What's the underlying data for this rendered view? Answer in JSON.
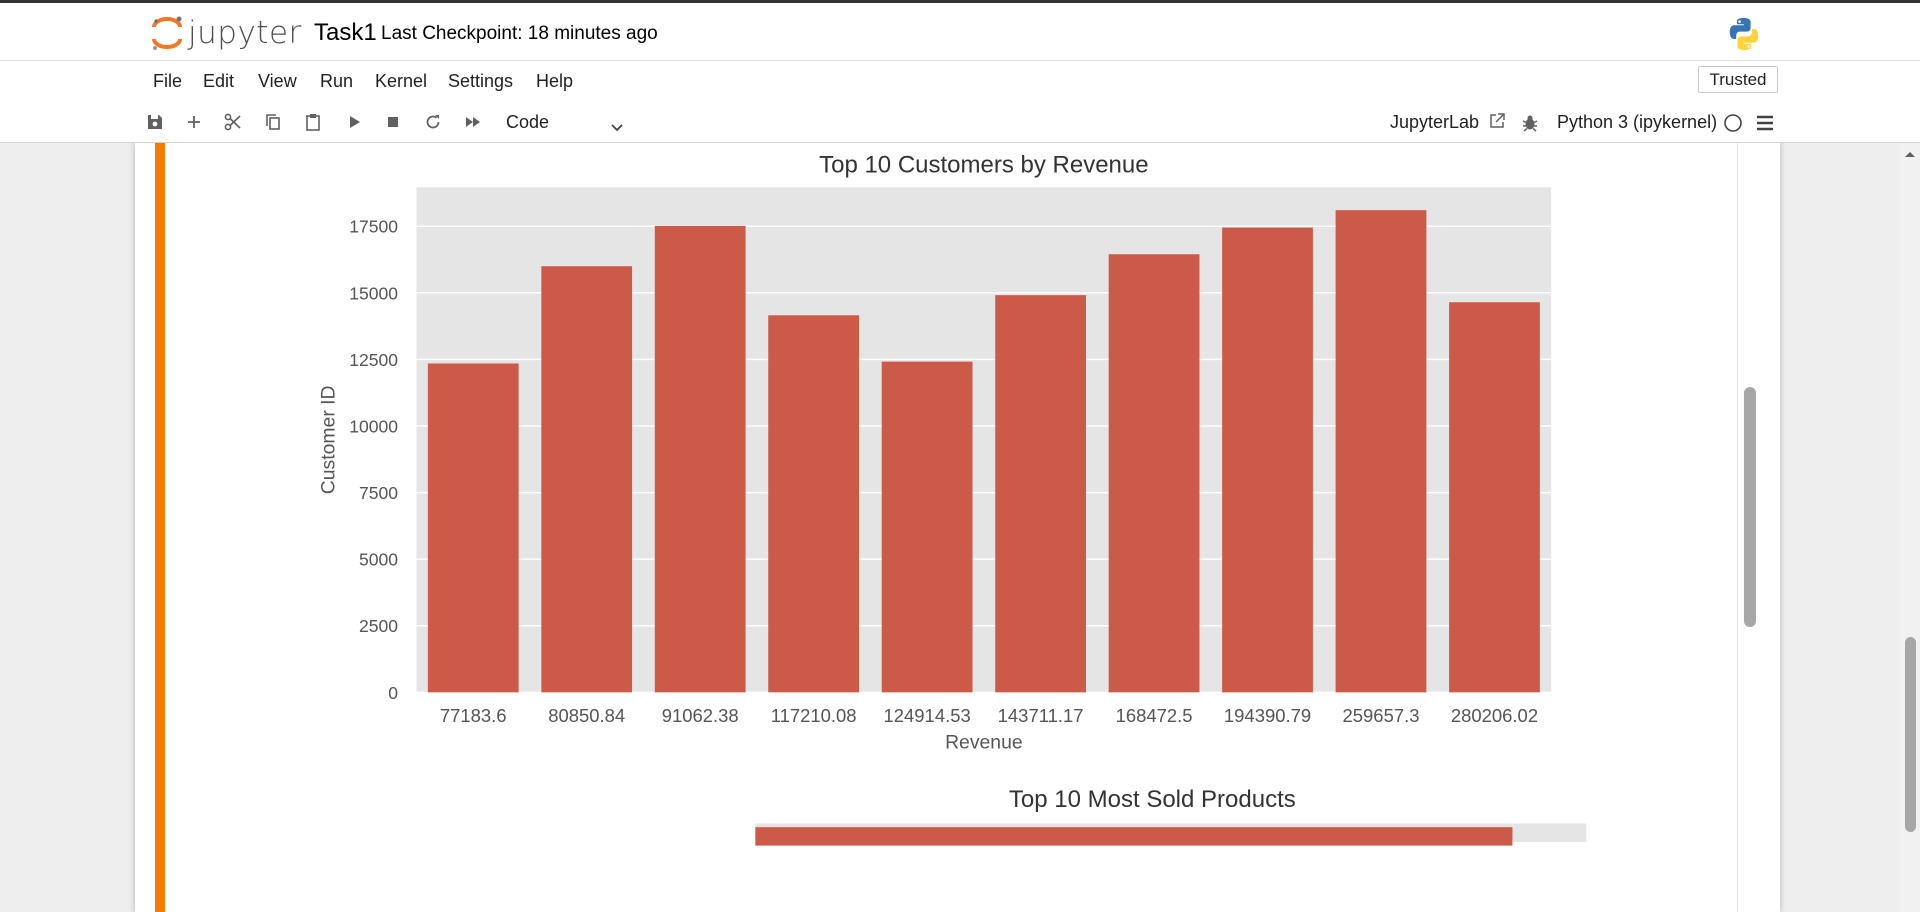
{
  "app": {
    "logo_text": "jupyter",
    "notebook_title": "Task1",
    "checkpoint": "Last Checkpoint: 18 minutes ago",
    "trusted": "Trusted"
  },
  "menu": [
    "File",
    "Edit",
    "View",
    "Run",
    "Kernel",
    "Settings",
    "Help"
  ],
  "toolbar": {
    "buttons": [
      "save-icon",
      "add-cell-icon",
      "cut-icon",
      "copy-icon",
      "paste-icon",
      "run-icon",
      "stop-icon",
      "restart-icon",
      "fast-forward-icon"
    ],
    "cell_type": "Code",
    "jupyterlab": "JupyterLab",
    "kernel": "Python 3 (ipykernel)"
  },
  "colors": {
    "accent": "#f57c00",
    "bar": "#cc5a49",
    "plot_bg": "#e5e5e5"
  },
  "chart_data": [
    {
      "type": "bar",
      "title": "Top 10 Customers by Revenue",
      "xlabel": "Revenue",
      "ylabel": "Customer ID",
      "categories": [
        "77183.6",
        "80850.84",
        "91062.38",
        "117210.08",
        "124914.53",
        "143711.17",
        "168472.5",
        "194390.79",
        "259657.3",
        "280206.02"
      ],
      "values": [
        12346,
        15998,
        17511,
        14156,
        12415,
        14911,
        16446,
        17450,
        18102,
        14646
      ],
      "ylim": [
        0,
        18960
      ],
      "yticks": [
        0,
        2500,
        5000,
        7500,
        10000,
        12500,
        15000,
        17500
      ],
      "grid": true
    },
    {
      "type": "bar",
      "title": "Top 10 Most Sold Products"
    }
  ]
}
